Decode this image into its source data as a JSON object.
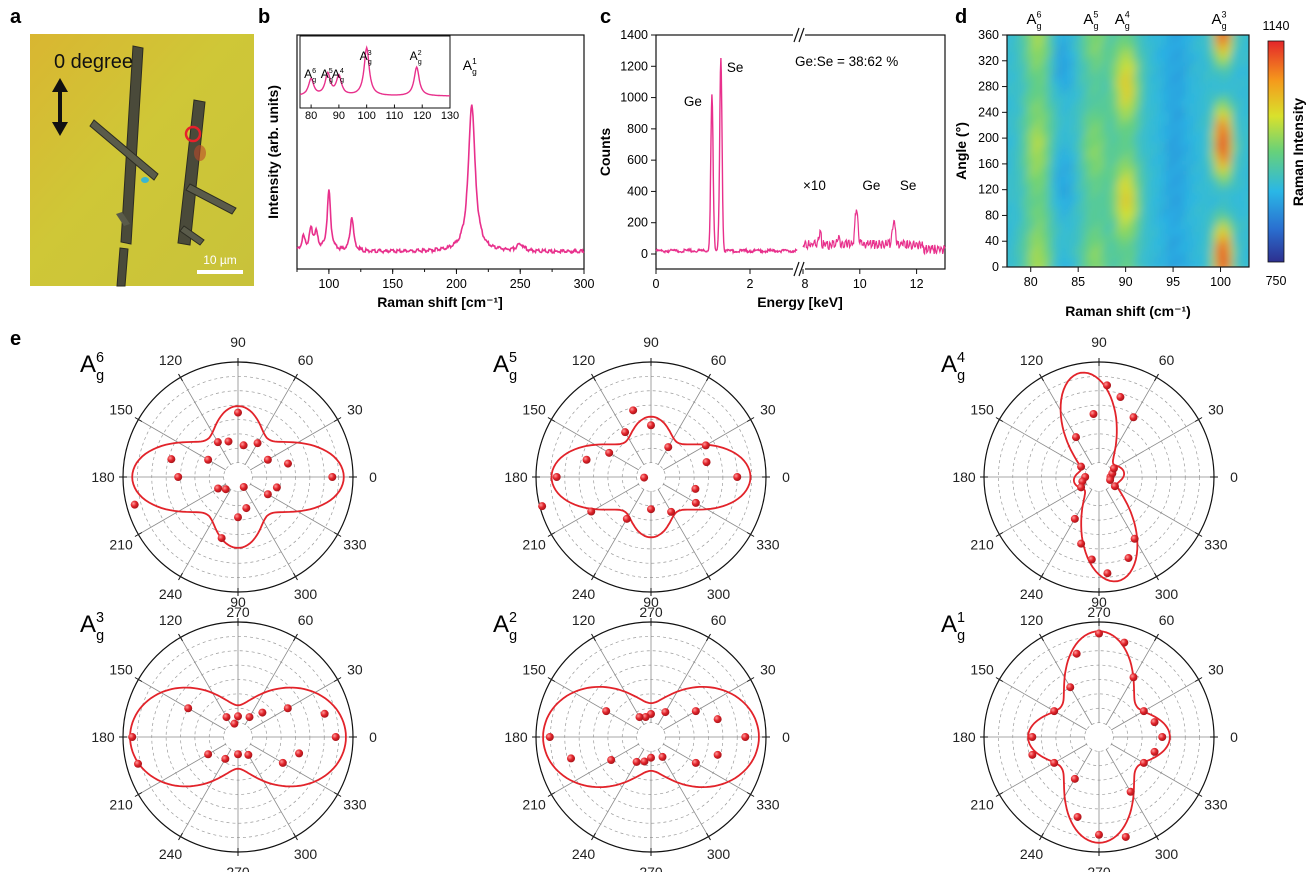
{
  "panel_labels": [
    "a",
    "b",
    "c",
    "d",
    "e"
  ],
  "micrograph": {
    "polarization_label": "0 degree",
    "scale_bar": "10 µm",
    "colors": {
      "background": "#d2c133",
      "crystal": "#4a4a3a",
      "marker": "#e8202a"
    }
  },
  "colors": {
    "spectrum": "#e8308c",
    "polar": "#e2232a",
    "ink": "#111111"
  },
  "chart_data": [
    {
      "panel": "b",
      "type": "line",
      "xlabel": "Raman shift [cm⁻¹]",
      "ylabel": "Intensity (arb. units)",
      "xlim": [
        75,
        300
      ],
      "xticks": [
        100,
        150,
        200,
        250,
        300
      ],
      "y_units": "arbitrary (0–1 normalized)",
      "ylim": [
        0,
        1.35
      ],
      "grid": false,
      "peaks": [
        {
          "label": "A_g^6",
          "x": 80,
          "height": 0.08
        },
        {
          "label": "A_g^5",
          "x": 86,
          "height": 0.12
        },
        {
          "label": "A_g^4",
          "x": 90,
          "height": 0.1
        },
        {
          "label": "A_g^3",
          "x": 100,
          "height": 0.35
        },
        {
          "label": "A_g^2",
          "x": 118,
          "height": 0.2
        },
        {
          "label": "A_g^1",
          "x": 212,
          "height": 0.85
        },
        {
          "label": "",
          "x": 250,
          "height": 0.04
        }
      ],
      "baseline": 0.1,
      "annotations": [
        {
          "text": "A_g^1",
          "x": 212
        }
      ],
      "inset": {
        "type": "line",
        "xlim": [
          76,
          130
        ],
        "xticks": [
          80,
          90,
          100,
          110,
          120,
          130
        ],
        "peaks": [
          {
            "label": "A_g^6",
            "x": 80,
            "height": 0.35
          },
          {
            "label": "A_g^5",
            "x": 86,
            "height": 0.45
          },
          {
            "label": "A_g^4",
            "x": 90,
            "height": 0.4
          },
          {
            "label": "A_g^3",
            "x": 100,
            "height": 1.0
          },
          {
            "label": "A_g^2",
            "x": 118,
            "height": 0.6
          }
        ]
      }
    },
    {
      "panel": "c",
      "type": "line",
      "title": "",
      "xlabel": "Energy [keV]",
      "ylabel": "Counts",
      "ylim": [
        0,
        1400
      ],
      "yticks": [
        0,
        200,
        400,
        600,
        800,
        1000,
        1200,
        1400
      ],
      "x_segment_1": {
        "xlim": [
          0,
          3
        ],
        "xticks": [
          0,
          2
        ]
      },
      "x_segment_2": {
        "xlim": [
          8,
          13
        ],
        "xticks": [
          8,
          10,
          12
        ]
      },
      "axis_break": true,
      "scale_note": "×10",
      "composition": "Ge:Se = 38:62 %",
      "peaks": [
        {
          "label": "Ge",
          "x": 1.19,
          "value": 1020
        },
        {
          "label": "Se",
          "x": 1.38,
          "value": 1260
        },
        {
          "label": "Ge",
          "x": 9.88,
          "value": 300
        },
        {
          "label": "Se",
          "x": 11.2,
          "value": 220
        }
      ],
      "extra_peaks": [
        {
          "x": 8.6,
          "value": 150
        },
        {
          "x": 9.25,
          "value": 120
        }
      ],
      "background": 20
    },
    {
      "panel": "d",
      "type": "heatmap",
      "xlabel": "Raman shift (cm⁻¹)",
      "ylabel": "Angle (°)",
      "xlim": [
        77.5,
        103
      ],
      "xticks": [
        80,
        85,
        90,
        95,
        100
      ],
      "ylim": [
        0,
        360
      ],
      "yticks": [
        0,
        40,
        80,
        120,
        160,
        200,
        240,
        280,
        320,
        360
      ],
      "top_labels": [
        {
          "label": "A_g^6",
          "x": 80.5
        },
        {
          "label": "A_g^5",
          "x": 86.5
        },
        {
          "label": "A_g^4",
          "x": 89.8
        },
        {
          "label": "A_g^3",
          "x": 100
        }
      ],
      "colorbar": {
        "label": "Raman Intensity",
        "min": 750,
        "max": 1140,
        "min_label": "750",
        "max_label": "1140"
      }
    },
    {
      "panel": "e",
      "type": "polar",
      "angle_ticks": [
        0,
        30,
        60,
        90,
        120,
        150,
        180,
        210,
        240,
        270,
        300,
        330
      ],
      "plots": [
        {
          "mode": "A_g^6",
          "fit": {
            "a": 0.88,
            "b": 0.55,
            "p": 4
          },
          "points": [
            [
              0,
              0.82
            ],
            [
              15,
              0.45
            ],
            [
              30,
              0.3
            ],
            [
              60,
              0.34
            ],
            [
              80,
              0.28
            ],
            [
              90,
              0.56
            ],
            [
              105,
              0.32
            ],
            [
              120,
              0.35
            ],
            [
              150,
              0.3
            ],
            [
              165,
              0.6
            ],
            [
              180,
              0.52
            ],
            [
              195,
              0.93
            ],
            [
              210,
              0.2
            ],
            [
              225,
              0.15
            ],
            [
              255,
              0.55
            ],
            [
              270,
              0.35
            ],
            [
              285,
              0.28
            ],
            [
              300,
              0.1
            ],
            [
              330,
              0.3
            ],
            [
              345,
              0.35
            ]
          ]
        },
        {
          "mode": "A_g^5",
          "fit": {
            "a": 0.82,
            "b": 0.45,
            "p": 4
          },
          "points": [
            [
              0,
              0.75
            ],
            [
              15,
              0.5
            ],
            [
              30,
              0.55
            ],
            [
              60,
              0.3
            ],
            [
              90,
              0.45
            ],
            [
              105,
              0.6
            ],
            [
              120,
              0.45
            ],
            [
              150,
              0.42
            ],
            [
              165,
              0.58
            ],
            [
              180,
              0.82
            ],
            [
              195,
              0.98
            ],
            [
              210,
              0.6
            ],
            [
              240,
              0.42
            ],
            [
              270,
              0.28
            ],
            [
              300,
              0.35
            ],
            [
              330,
              0.45
            ],
            [
              345,
              0.4
            ],
            [
              185,
              0.06
            ]
          ]
        },
        {
          "mode": "A_g^4",
          "fit": {
            "a": 0.12,
            "b": 0.88,
            "p": 6,
            "rot": 10
          },
          "points": [
            [
              0,
              0.1
            ],
            [
              15,
              0.12
            ],
            [
              30,
              0.15
            ],
            [
              60,
              0.6
            ],
            [
              75,
              0.72
            ],
            [
              85,
              0.8
            ],
            [
              95,
              0.55
            ],
            [
              120,
              0.4
            ],
            [
              150,
              0.18
            ],
            [
              180,
              0.12
            ],
            [
              195,
              0.15
            ],
            [
              210,
              0.18
            ],
            [
              240,
              0.42
            ],
            [
              255,
              0.6
            ],
            [
              265,
              0.72
            ],
            [
              275,
              0.84
            ],
            [
              290,
              0.75
            ],
            [
              300,
              0.62
            ],
            [
              330,
              0.16
            ],
            [
              345,
              0.1
            ]
          ]
        },
        {
          "mode": "A_g^3",
          "fit": {
            "a": 0.9,
            "b": 0.18,
            "p": 2
          },
          "points": [
            [
              0,
              0.85
            ],
            [
              15,
              0.78
            ],
            [
              30,
              0.5
            ],
            [
              45,
              0.3
            ],
            [
              60,
              0.2
            ],
            [
              90,
              0.18
            ],
            [
              105,
              0.12
            ],
            [
              120,
              0.2
            ],
            [
              150,
              0.5
            ],
            [
              180,
              0.92
            ],
            [
              195,
              0.9
            ],
            [
              210,
              0.3
            ],
            [
              240,
              0.22
            ],
            [
              270,
              0.15
            ],
            [
              300,
              0.18
            ],
            [
              330,
              0.45
            ],
            [
              345,
              0.55
            ]
          ]
        },
        {
          "mode": "A_g^2",
          "fit": {
            "a": 0.9,
            "b": 0.2,
            "p": 2
          },
          "points": [
            [
              0,
              0.82
            ],
            [
              15,
              0.6
            ],
            [
              30,
              0.45
            ],
            [
              60,
              0.25
            ],
            [
              90,
              0.2
            ],
            [
              105,
              0.18
            ],
            [
              120,
              0.2
            ],
            [
              150,
              0.45
            ],
            [
              180,
              0.88
            ],
            [
              195,
              0.72
            ],
            [
              210,
              0.4
            ],
            [
              240,
              0.25
            ],
            [
              255,
              0.22
            ],
            [
              270,
              0.18
            ],
            [
              300,
              0.2
            ],
            [
              330,
              0.45
            ],
            [
              345,
              0.6
            ]
          ]
        },
        {
          "mode": "A_g^1",
          "fit": {
            "a": 0.55,
            "b": 0.88,
            "p": 4
          },
          "points": [
            [
              0,
              0.55
            ],
            [
              15,
              0.5
            ],
            [
              30,
              0.45
            ],
            [
              60,
              0.6
            ],
            [
              75,
              0.85
            ],
            [
              90,
              0.9
            ],
            [
              105,
              0.75
            ],
            [
              120,
              0.5
            ],
            [
              150,
              0.45
            ],
            [
              180,
              0.58
            ],
            [
              195,
              0.6
            ],
            [
              210,
              0.45
            ],
            [
              240,
              0.42
            ],
            [
              255,
              0.72
            ],
            [
              270,
              0.85
            ],
            [
              285,
              0.9
            ],
            [
              300,
              0.55
            ],
            [
              330,
              0.45
            ],
            [
              345,
              0.5
            ]
          ]
        }
      ]
    }
  ]
}
